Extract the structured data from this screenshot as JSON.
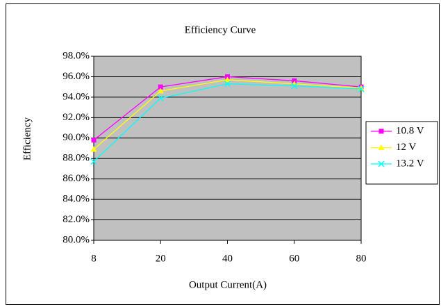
{
  "chart_data": {
    "type": "line",
    "title": "Efficiency Curve",
    "x_label": "Output Current(A)",
    "y_label": "Efficiency",
    "categories": [
      "8",
      "20",
      "40",
      "60",
      "80"
    ],
    "series": [
      {
        "name": "10.8 V",
        "color": "#ff00ff",
        "marker": "square",
        "values": [
          89.8,
          95.0,
          96.0,
          95.6,
          95.0
        ]
      },
      {
        "name": "12 V",
        "color": "#ffff00",
        "marker": "triangle",
        "values": [
          88.9,
          94.6,
          95.7,
          95.3,
          94.9
        ]
      },
      {
        "name": "13.2 V",
        "color": "#00ffff",
        "marker": "x",
        "values": [
          87.7,
          93.9,
          95.3,
          95.1,
          94.8
        ]
      }
    ],
    "ylim": [
      80,
      98
    ],
    "yticks": [
      {
        "value": 80,
        "label": "80.0%"
      },
      {
        "value": 82,
        "label": "82.0%"
      },
      {
        "value": 84,
        "label": "84.0%"
      },
      {
        "value": 86,
        "label": "86.0%"
      },
      {
        "value": 88,
        "label": "88.0%"
      },
      {
        "value": 90,
        "label": "90.0%"
      },
      {
        "value": 92,
        "label": "92.0%"
      },
      {
        "value": 94,
        "label": "94.0%"
      },
      {
        "value": 96,
        "label": "96.0%"
      },
      {
        "value": 98,
        "label": "98.0%"
      }
    ],
    "grid": true,
    "legend": "right",
    "plot_background": "#c0c0c0"
  }
}
